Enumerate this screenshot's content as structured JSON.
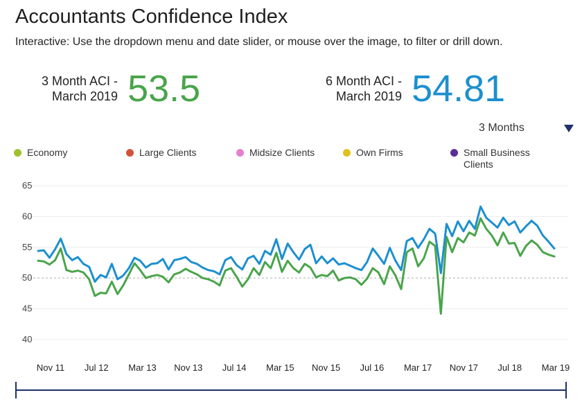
{
  "header": {
    "title": "Accountants Confidence Index",
    "subtitle": "Interactive: Use the dropdown menu and date slider, or mouse over the image, to filter or drill down."
  },
  "kpis": {
    "three_month": {
      "label_line1": "3 Month ACI -",
      "label_line2": "March 2019",
      "value": "53.5",
      "color": "#4aa44b"
    },
    "six_month": {
      "label_line1": "6 Month ACI -",
      "label_line2": "March 2019",
      "value": "54.81",
      "color": "#1c8fd0"
    }
  },
  "range_select": {
    "selected": "3 Months"
  },
  "legend": [
    {
      "label": "Economy",
      "color": "#9ec22f"
    },
    {
      "label": "Large Clients",
      "color": "#d1543a"
    },
    {
      "label": "Midsize Clients",
      "color": "#e57fd0"
    },
    {
      "label": "Own Firms",
      "color": "#e0c11c"
    },
    {
      "label": "Small Business",
      "label2": "Clients",
      "color": "#5b2c99"
    }
  ],
  "chart_data": {
    "type": "line",
    "title": "Accountants Confidence Index",
    "xlabel": "",
    "ylabel": "",
    "ylim": [
      40,
      65
    ],
    "yticks": [
      40,
      45,
      50,
      55,
      60,
      65
    ],
    "reference_line": 50,
    "grid": true,
    "x_tick_labels": [
      "Nov 11",
      "Jul 12",
      "Mar 13",
      "Nov 13",
      "Jul 14",
      "Mar 15",
      "Nov 15",
      "Jul 16",
      "Mar 17",
      "Nov 17",
      "Jul 18",
      "Mar 19"
    ],
    "series": [
      {
        "name": "3 Month ACI",
        "color": "#4aa44b",
        "values": [
          52.8,
          52.7,
          52.2,
          52.9,
          54.8,
          51.3,
          51.0,
          51.2,
          50.9,
          49.8,
          47.1,
          47.6,
          47.5,
          49.4,
          47.4,
          48.8,
          50.6,
          52.4,
          51.3,
          50.0,
          50.3,
          50.5,
          50.2,
          49.3,
          50.6,
          50.9,
          51.5,
          51.0,
          50.6,
          50.0,
          49.8,
          49.4,
          48.8,
          51.2,
          51.6,
          50.2,
          48.6,
          49.8,
          51.6,
          50.5,
          52.6,
          51.6,
          54.1,
          51.0,
          52.8,
          51.6,
          50.9,
          52.3,
          51.7,
          50.1,
          50.5,
          50.3,
          51.2,
          49.6,
          50.0,
          50.1,
          49.8,
          48.9,
          49.9,
          51.6,
          50.9,
          49.0,
          51.9,
          50.4,
          48.2,
          54.2,
          54.8,
          51.9,
          53.2,
          55.9,
          55.2,
          44.2,
          56.7,
          54.2,
          56.5,
          55.8,
          57.4,
          56.9,
          59.7,
          58.0,
          56.9,
          55.3,
          57.4,
          55.6,
          55.7,
          53.6,
          55.2,
          56.1,
          55.4,
          54.2,
          53.8,
          53.5
        ]
      },
      {
        "name": "6 Month ACI",
        "color": "#1c8fd0",
        "values": [
          54.4,
          54.5,
          53.3,
          54.7,
          56.4,
          53.9,
          52.9,
          53.4,
          52.3,
          51.8,
          49.4,
          50.5,
          50.1,
          52.3,
          49.8,
          50.4,
          51.6,
          53.3,
          52.8,
          51.7,
          52.3,
          52.4,
          53.1,
          51.4,
          52.9,
          53.1,
          53.4,
          52.6,
          52.3,
          51.7,
          51.3,
          51.1,
          50.6,
          52.9,
          53.4,
          52.1,
          51.4,
          53.2,
          53.6,
          52.3,
          54.4,
          53.8,
          56.3,
          53.1,
          55.6,
          54.2,
          53.0,
          54.7,
          55.4,
          52.4,
          53.5,
          52.4,
          53.2,
          52.2,
          52.4,
          52.0,
          51.6,
          51.3,
          52.6,
          54.8,
          53.6,
          52.3,
          54.9,
          52.8,
          51.3,
          56.0,
          56.5,
          54.9,
          56.3,
          58.0,
          57.2,
          50.8,
          58.8,
          56.8,
          59.2,
          57.6,
          59.3,
          58.0,
          61.6,
          59.8,
          59.0,
          58.2,
          59.8,
          58.6,
          59.2,
          57.4,
          58.4,
          59.3,
          58.5,
          56.9,
          55.9,
          54.8
        ]
      }
    ]
  }
}
